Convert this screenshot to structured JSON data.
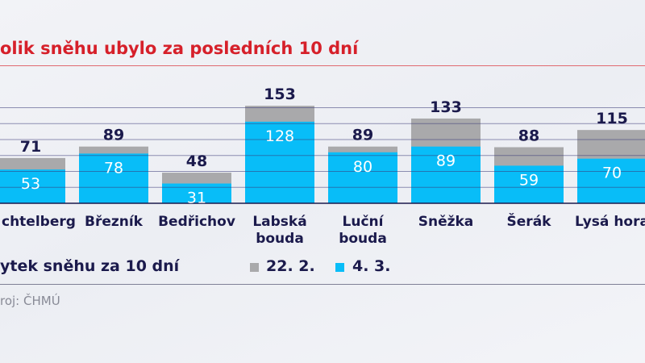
{
  "title": "olik sněhu ubylo za posledních 10 dní",
  "chart_data": {
    "type": "bar",
    "stacked": false,
    "overlapping": true,
    "categories": [
      [
        "chtelberg"
      ],
      [
        "Březník"
      ],
      [
        "Bedřichov"
      ],
      [
        "Labská",
        "bouda"
      ],
      [
        "Luční",
        "bouda"
      ],
      [
        "Sněžka"
      ],
      [
        "Šerák"
      ],
      [
        "Lysá hora"
      ]
    ],
    "series": [
      {
        "name": "22. 2.",
        "color": "#a9a9ab",
        "values": [
          71,
          89,
          48,
          153,
          89,
          133,
          88,
          115
        ]
      },
      {
        "name": "4. 3.",
        "color": "#08bdf8",
        "values": [
          53,
          78,
          31,
          128,
          80,
          89,
          59,
          70
        ]
      }
    ],
    "ylim": [
      0,
      160
    ],
    "grid": true,
    "gridlines": [
      25,
      50,
      75,
      100,
      125,
      150
    ],
    "legend_title": "ytek sněhu za 10 dní",
    "legend_placement": "bottom"
  },
  "source": "roj: ČHMÚ",
  "colors": {
    "title": "#d6202a",
    "text": "#1b1a4c",
    "grid": "#3a3a78"
  }
}
